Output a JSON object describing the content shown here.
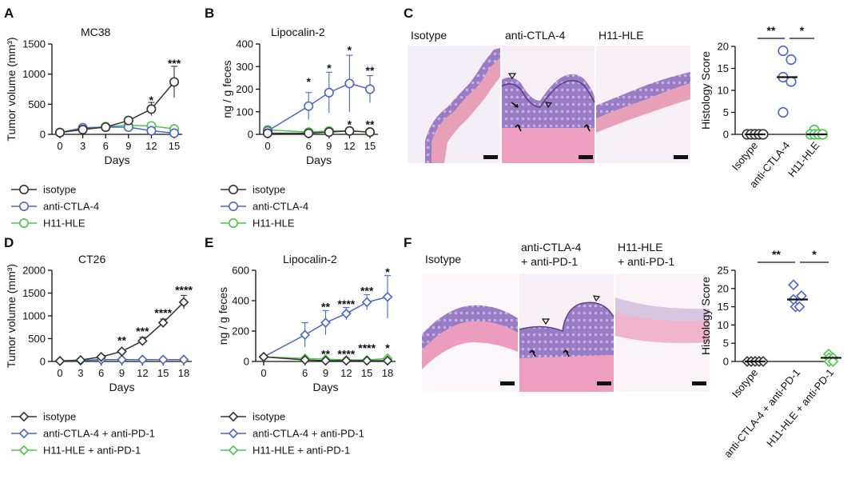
{
  "panels": {
    "A": {
      "label": "A"
    },
    "B": {
      "label": "B"
    },
    "C": {
      "label": "C"
    },
    "D": {
      "label": "D"
    },
    "E": {
      "label": "E"
    },
    "F": {
      "label": "F"
    }
  },
  "histology_C": {
    "titles": [
      "Isotype",
      "anti-CTLA-4",
      "H11-HLE"
    ]
  },
  "histology_F": {
    "titles": [
      [
        "Isotype"
      ],
      [
        "anti-CTLA-4",
        "+ anti-PD-1"
      ],
      [
        "H11-HLE",
        "+ anti-PD-1"
      ]
    ]
  },
  "colors": {
    "isotype": "#333333",
    "anti": "#4a66c8",
    "h11": "#4cc44c",
    "tissue_pink": "#e8a0b8",
    "tissue_purple": "#8a6fb8"
  },
  "chart_data": [
    {
      "id": "A",
      "type": "line",
      "title": "MC38",
      "xlabel": "Days",
      "ylabel": "Tumor volume (mm³)",
      "x": [
        0,
        3,
        6,
        9,
        12,
        15
      ],
      "ylim": [
        0,
        1500
      ],
      "yticks": [
        0,
        500,
        1000,
        1500
      ],
      "marker": "circle",
      "series": [
        {
          "name": "isotype",
          "values": [
            30,
            80,
            120,
            230,
            420,
            870
          ],
          "err": [
            0,
            15,
            20,
            50,
            110,
            260
          ]
        },
        {
          "name": "anti-CTLA-4",
          "values": [
            30,
            110,
            120,
            120,
            60,
            20
          ],
          "err": [
            0,
            15,
            20,
            30,
            20,
            10
          ]
        },
        {
          "name": "H11-HLE",
          "values": [
            30,
            90,
            130,
            150,
            140,
            90
          ],
          "err": [
            0,
            15,
            20,
            40,
            30,
            20
          ]
        }
      ],
      "annotations": [
        {
          "x": 12,
          "y": 560,
          "text": "*"
        },
        {
          "x": 15,
          "y": 1170,
          "text": "***"
        }
      ]
    },
    {
      "id": "B",
      "type": "line",
      "title": "Lipocalin-2",
      "xlabel": "Days",
      "ylabel": "ng / g feces",
      "x": [
        0,
        6,
        9,
        12,
        15
      ],
      "ylim": [
        0,
        400
      ],
      "yticks": [
        0,
        100,
        200,
        300,
        400
      ],
      "marker": "circle",
      "series": [
        {
          "name": "isotype",
          "values": [
            5,
            5,
            10,
            15,
            10
          ],
          "err": [
            2,
            3,
            5,
            5,
            5
          ]
        },
        {
          "name": "anti-CTLA-4",
          "values": [
            15,
            125,
            185,
            225,
            200
          ],
          "err": [
            5,
            60,
            90,
            125,
            60
          ]
        },
        {
          "name": "H11-HLE",
          "values": [
            20,
            10,
            15,
            15,
            10
          ],
          "err": [
            5,
            5,
            5,
            5,
            5
          ]
        }
      ],
      "annotations": [
        {
          "x": 6,
          "y": 230,
          "text": "*"
        },
        {
          "x": 9,
          "y": 290,
          "text": "*"
        },
        {
          "x": 12,
          "y": 370,
          "text": "*"
        },
        {
          "x": 15,
          "y": 280,
          "text": "**"
        },
        {
          "x": 12,
          "y": 40,
          "text": "*"
        },
        {
          "x": 15,
          "y": 40,
          "text": "**"
        }
      ]
    },
    {
      "id": "C",
      "type": "scatter",
      "ylabel": "Histology Score",
      "categories": [
        "Isotype",
        "anti-CTLA-4",
        "H11-HLE"
      ],
      "ylim": [
        0,
        20
      ],
      "yticks": [
        0,
        5,
        10,
        15,
        20
      ],
      "marker": "circle",
      "points": [
        [
          0,
          0,
          0,
          0,
          0
        ],
        [
          19,
          17,
          13,
          12,
          5
        ],
        [
          1,
          0,
          0,
          0,
          0
        ]
      ],
      "medians": [
        0,
        13,
        0
      ],
      "brackets": [
        {
          "from": 0,
          "to": 1,
          "text": "**"
        },
        {
          "from": 1,
          "to": 2,
          "text": "*"
        }
      ]
    },
    {
      "id": "D",
      "type": "line",
      "title": "CT26",
      "xlabel": "Days",
      "ylabel": "Tumor volume (mm³)",
      "x": [
        0,
        3,
        6,
        9,
        12,
        15,
        18
      ],
      "ylim": [
        0,
        2000
      ],
      "yticks": [
        0,
        500,
        1000,
        1500,
        2000
      ],
      "marker": "diamond",
      "series": [
        {
          "name": "isotype",
          "values": [
            10,
            30,
            100,
            220,
            450,
            850,
            1300
          ],
          "err": [
            0,
            5,
            30,
            40,
            80,
            80,
            150
          ]
        },
        {
          "name": "anti-CTLA-4 + anti-PD-1",
          "values": [
            10,
            20,
            40,
            40,
            40,
            40,
            40
          ],
          "err": [
            0,
            5,
            10,
            10,
            10,
            10,
            10
          ]
        },
        {
          "name": "H11-HLE + anti-PD-1",
          "values": [
            10,
            20,
            40,
            40,
            40,
            40,
            40
          ],
          "err": [
            0,
            5,
            10,
            10,
            10,
            10,
            10
          ]
        }
      ],
      "annotations": [
        {
          "x": 9,
          "y": 450,
          "text": "**"
        },
        {
          "x": 12,
          "y": 650,
          "text": "***"
        },
        {
          "x": 15,
          "y": 1050,
          "text": "****"
        },
        {
          "x": 18,
          "y": 1550,
          "text": "****"
        }
      ]
    },
    {
      "id": "E",
      "type": "line",
      "title": "Lipocalin-2",
      "xlabel": "Days",
      "ylabel": "ng / g feces",
      "x": [
        0,
        6,
        9,
        12,
        15,
        18
      ],
      "ylim": [
        0,
        600
      ],
      "yticks": [
        0,
        200,
        400,
        600
      ],
      "marker": "diamond",
      "series": [
        {
          "name": "isotype",
          "values": [
            30,
            10,
            5,
            5,
            5,
            5
          ],
          "err": [
            5,
            5,
            3,
            3,
            3,
            3
          ]
        },
        {
          "name": "anti-CTLA-4 + anti-PD-1",
          "values": [
            30,
            175,
            255,
            315,
            390,
            425
          ],
          "err": [
            10,
            80,
            80,
            40,
            50,
            140
          ]
        },
        {
          "name": "H11-HLE + anti-PD-1",
          "values": [
            30,
            20,
            15,
            10,
            10,
            20
          ],
          "err": [
            5,
            5,
            5,
            5,
            5,
            5
          ]
        }
      ],
      "annotations": [
        {
          "x": 9,
          "y": 355,
          "text": "**"
        },
        {
          "x": 12,
          "y": 375,
          "text": "****"
        },
        {
          "x": 15,
          "y": 460,
          "text": "***"
        },
        {
          "x": 18,
          "y": 585,
          "text": "*"
        },
        {
          "x": 9,
          "y": 45,
          "text": "**"
        },
        {
          "x": 12,
          "y": 45,
          "text": "****"
        },
        {
          "x": 15,
          "y": 85,
          "text": "****"
        },
        {
          "x": 18,
          "y": 85,
          "text": "*"
        }
      ]
    },
    {
      "id": "F",
      "type": "scatter",
      "ylabel": "Histology Score",
      "categories": [
        "Isotype",
        "anti-CTLA-4 + anti-PD-1",
        "H11-HLE + anti-PD-1"
      ],
      "ylim": [
        0,
        25
      ],
      "yticks": [
        0,
        5,
        10,
        15,
        20,
        25
      ],
      "marker": "diamond",
      "points": [
        [
          0,
          0,
          0,
          0,
          0
        ],
        [
          21,
          18,
          17,
          15,
          15
        ],
        [
          2,
          1,
          1,
          0,
          0
        ]
      ],
      "medians": [
        0,
        17,
        1
      ],
      "brackets": [
        {
          "from": 0,
          "to": 1,
          "text": "**"
        },
        {
          "from": 1,
          "to": 2,
          "text": "*"
        }
      ]
    }
  ]
}
